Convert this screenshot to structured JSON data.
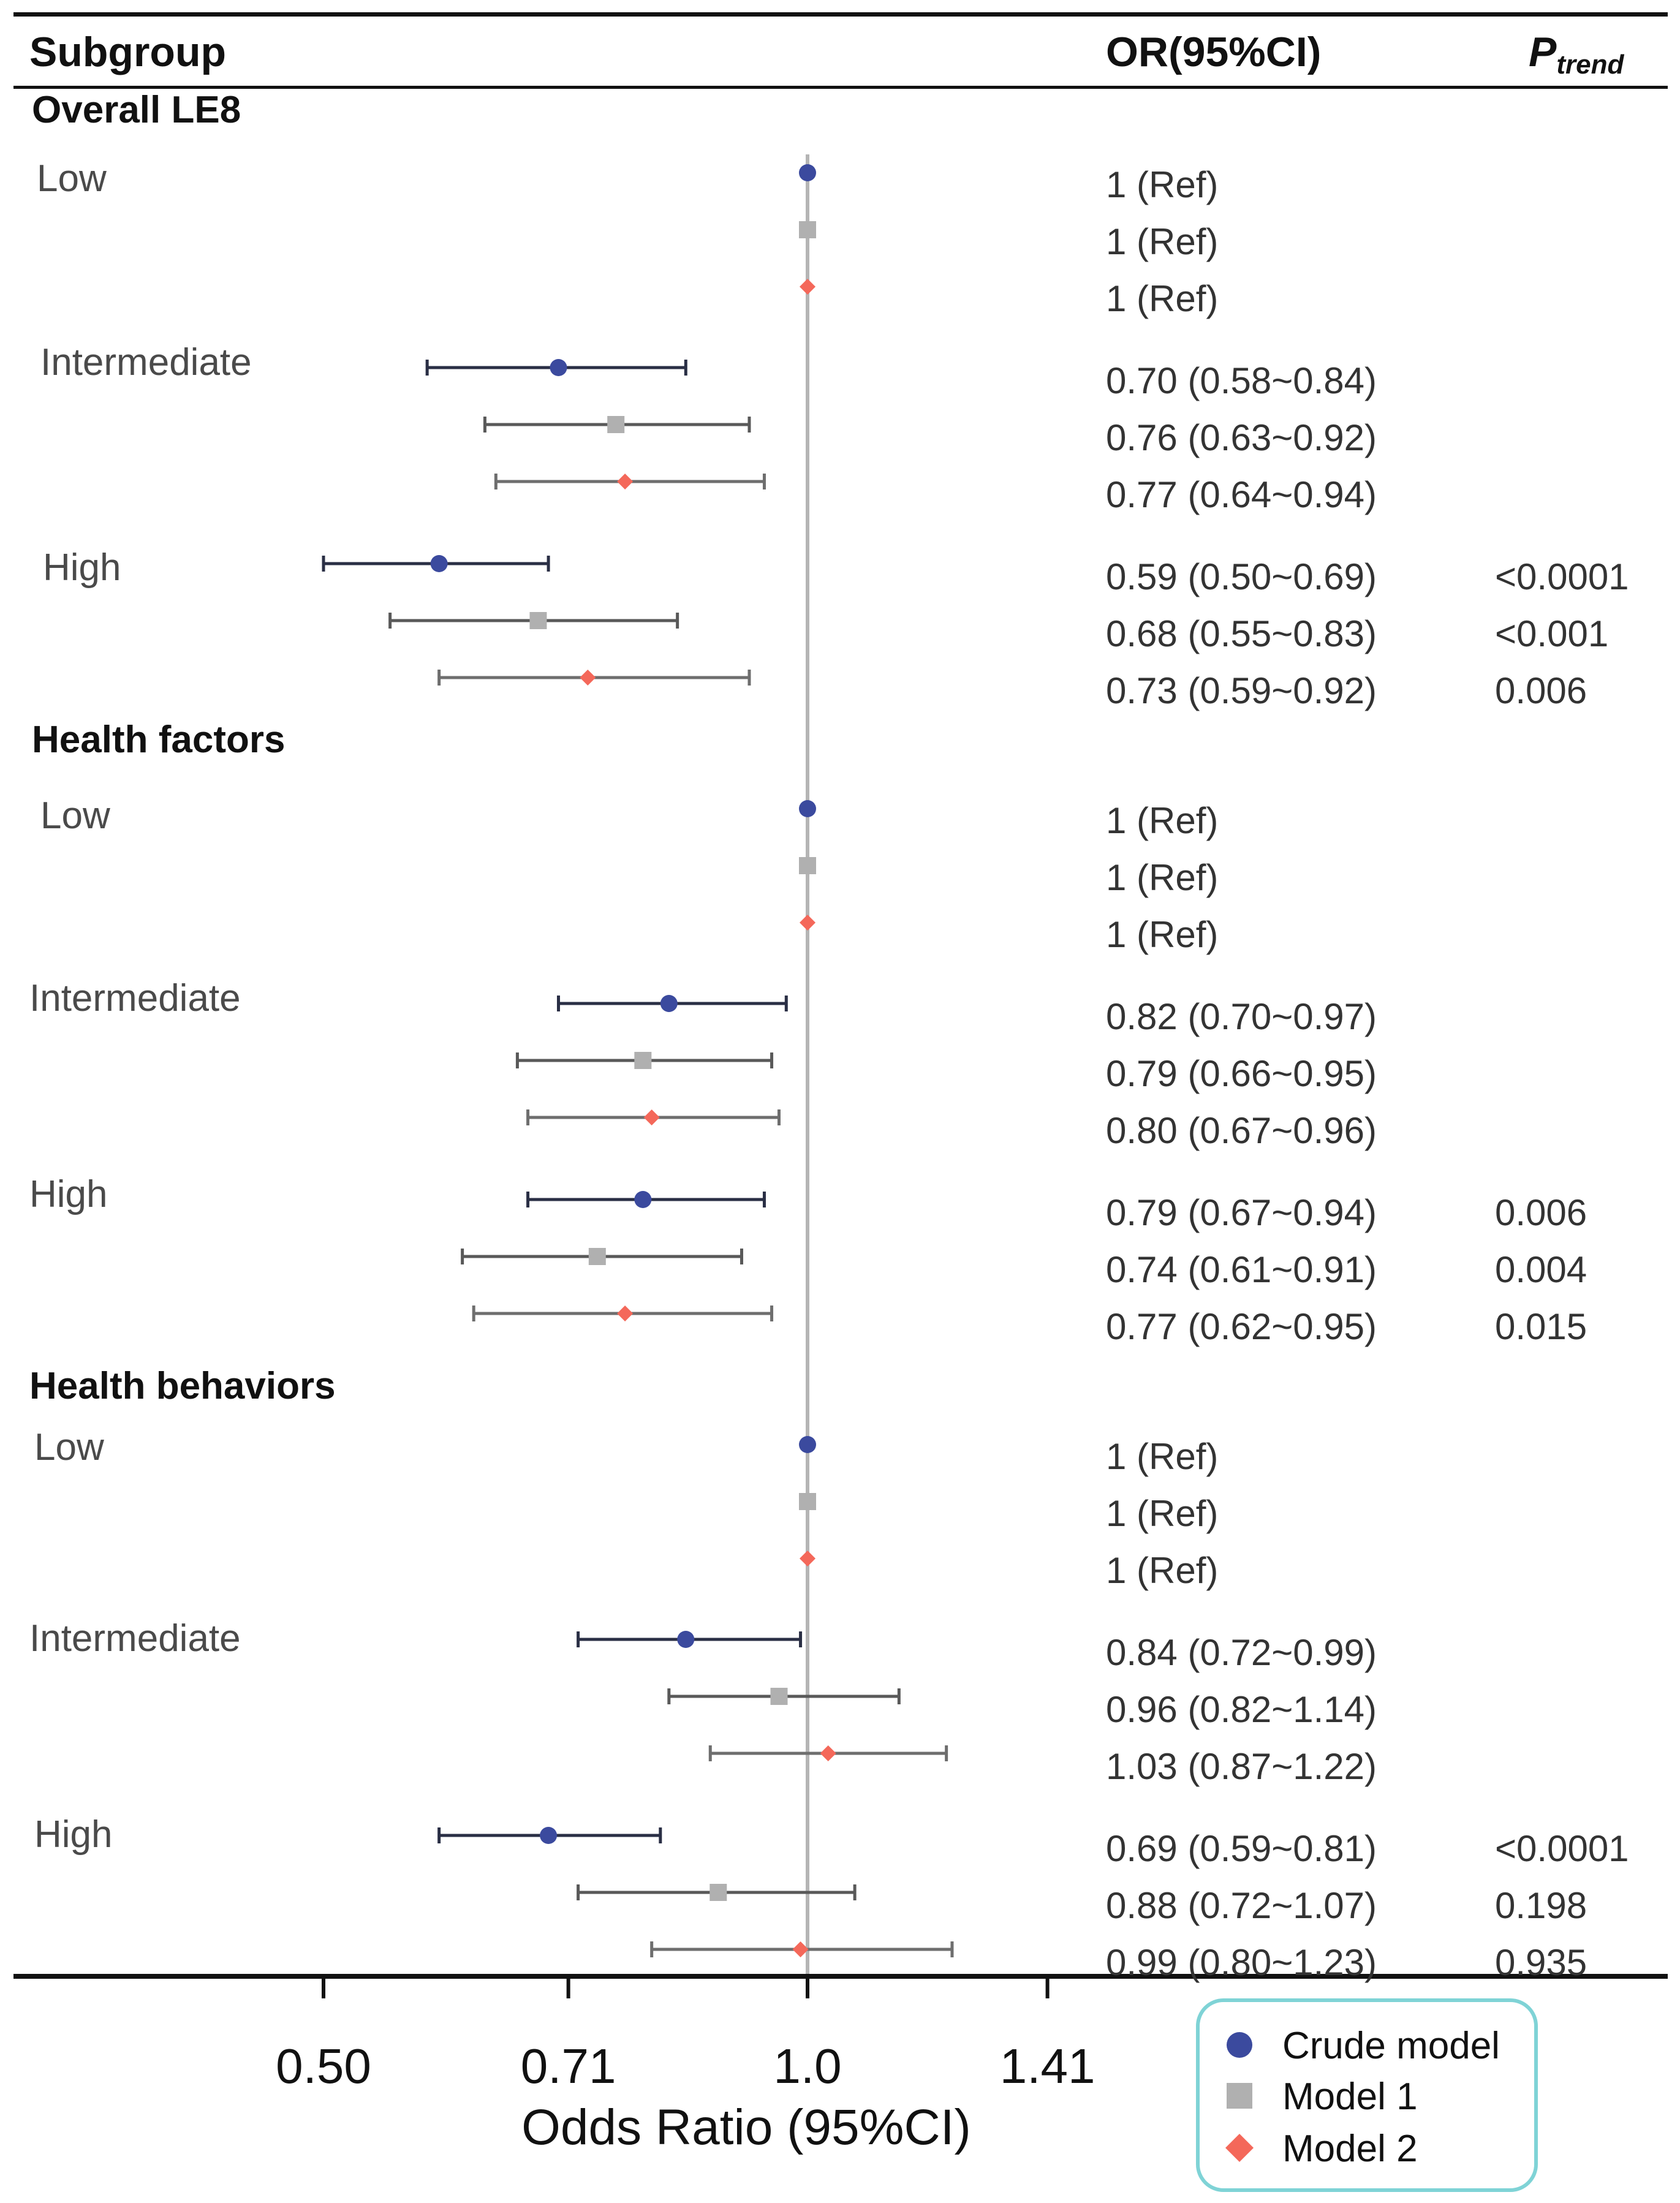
{
  "chart_data": {
    "type": "forest",
    "columns": {
      "subgroup": "Subgroup",
      "or": "OR(95%CI)",
      "p_trend_main": "P",
      "p_trend_sub": "trend"
    },
    "xlabel": "Odds Ratio (95%CI)",
    "x_scale": "log2",
    "xlim": [
      0.44,
      1.55
    ],
    "reference_line": 1.0,
    "x_ticks": [
      {
        "value": 0.5,
        "label": "0.50"
      },
      {
        "value": 0.71,
        "label": "0.71"
      },
      {
        "value": 1.0,
        "label": "1.0"
      },
      {
        "value": 1.41,
        "label": "1.41"
      }
    ],
    "series": [
      {
        "name": "Crude model",
        "marker": "circle",
        "color": "#3b4a9e"
      },
      {
        "name": "Model 1",
        "marker": "square",
        "color": "#b0b0b0"
      },
      {
        "name": "Model 2",
        "marker": "diamond",
        "color": "#f4685a"
      }
    ],
    "groups": [
      {
        "name": "Overall LE8",
        "levels": [
          {
            "label": "Low",
            "rows": [
              {
                "or": 1,
                "lo": null,
                "hi": null,
                "text": "1 (Ref)",
                "p": ""
              },
              {
                "or": 1,
                "lo": null,
                "hi": null,
                "text": "1 (Ref)",
                "p": ""
              },
              {
                "or": 1,
                "lo": null,
                "hi": null,
                "text": "1 (Ref)",
                "p": ""
              }
            ]
          },
          {
            "label": "Intermediate",
            "rows": [
              {
                "or": 0.7,
                "lo": 0.58,
                "hi": 0.84,
                "text": "0.70 (0.58~0.84)",
                "p": ""
              },
              {
                "or": 0.76,
                "lo": 0.63,
                "hi": 0.92,
                "text": "0.76 (0.63~0.92)",
                "p": ""
              },
              {
                "or": 0.77,
                "lo": 0.64,
                "hi": 0.94,
                "text": "0.77 (0.64~0.94)",
                "p": ""
              }
            ]
          },
          {
            "label": "High",
            "rows": [
              {
                "or": 0.59,
                "lo": 0.5,
                "hi": 0.69,
                "text": "0.59 (0.50~0.69)",
                "p": "<0.0001"
              },
              {
                "or": 0.68,
                "lo": 0.55,
                "hi": 0.83,
                "text": "0.68 (0.55~0.83)",
                "p": "<0.001"
              },
              {
                "or": 0.73,
                "lo": 0.59,
                "hi": 0.92,
                "text": "0.73 (0.59~0.92)",
                "p": "0.006"
              }
            ]
          }
        ]
      },
      {
        "name": "Health factors",
        "levels": [
          {
            "label": "Low",
            "rows": [
              {
                "or": 1,
                "lo": null,
                "hi": null,
                "text": "1 (Ref)",
                "p": ""
              },
              {
                "or": 1,
                "lo": null,
                "hi": null,
                "text": "1 (Ref)",
                "p": ""
              },
              {
                "or": 1,
                "lo": null,
                "hi": null,
                "text": "1 (Ref)",
                "p": ""
              }
            ]
          },
          {
            "label": "Intermediate",
            "rows": [
              {
                "or": 0.82,
                "lo": 0.7,
                "hi": 0.97,
                "text": "0.82 (0.70~0.97)",
                "p": ""
              },
              {
                "or": 0.79,
                "lo": 0.66,
                "hi": 0.95,
                "text": "0.79 (0.66~0.95)",
                "p": ""
              },
              {
                "or": 0.8,
                "lo": 0.67,
                "hi": 0.96,
                "text": "0.80 (0.67~0.96)",
                "p": ""
              }
            ]
          },
          {
            "label": "High",
            "rows": [
              {
                "or": 0.79,
                "lo": 0.67,
                "hi": 0.94,
                "text": "0.79 (0.67~0.94)",
                "p": "0.006"
              },
              {
                "or": 0.74,
                "lo": 0.61,
                "hi": 0.91,
                "text": "0.74 (0.61~0.91)",
                "p": "0.004"
              },
              {
                "or": 0.77,
                "lo": 0.62,
                "hi": 0.95,
                "text": "0.77 (0.62~0.95)",
                "p": "0.015"
              }
            ]
          }
        ]
      },
      {
        "name": "Health behaviors",
        "levels": [
          {
            "label": "Low",
            "rows": [
              {
                "or": 1,
                "lo": null,
                "hi": null,
                "text": "1 (Ref)",
                "p": ""
              },
              {
                "or": 1,
                "lo": null,
                "hi": null,
                "text": "1 (Ref)",
                "p": ""
              },
              {
                "or": 1,
                "lo": null,
                "hi": null,
                "text": "1 (Ref)",
                "p": ""
              }
            ]
          },
          {
            "label": "Intermediate",
            "rows": [
              {
                "or": 0.84,
                "lo": 0.72,
                "hi": 0.99,
                "text": "0.84 (0.72~0.99)",
                "p": ""
              },
              {
                "or": 0.96,
                "lo": 0.82,
                "hi": 1.14,
                "text": "0.96 (0.82~1.14)",
                "p": ""
              },
              {
                "or": 1.03,
                "lo": 0.87,
                "hi": 1.22,
                "text": "1.03 (0.87~1.22)",
                "p": ""
              }
            ]
          },
          {
            "label": "High",
            "rows": [
              {
                "or": 0.69,
                "lo": 0.59,
                "hi": 0.81,
                "text": "0.69 (0.59~0.81)",
                "p": "<0.0001"
              },
              {
                "or": 0.88,
                "lo": 0.72,
                "hi": 1.07,
                "text": "0.88 (0.72~1.07)",
                "p": "0.198"
              },
              {
                "or": 0.99,
                "lo": 0.8,
                "hi": 1.23,
                "text": "0.99 (0.80~1.23)",
                "p": "0.935"
              }
            ]
          }
        ]
      }
    ]
  }
}
